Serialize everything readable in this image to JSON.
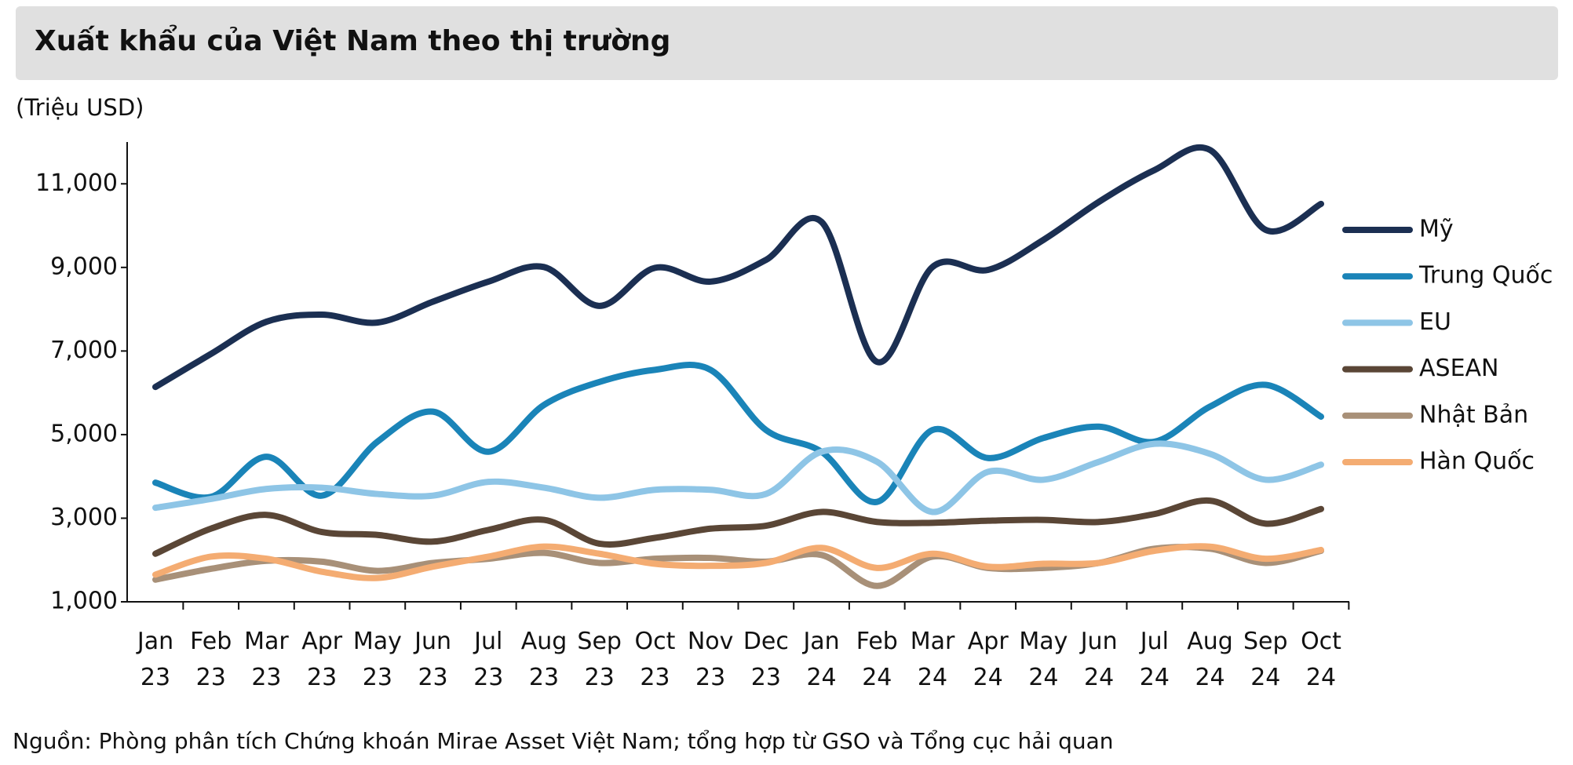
{
  "chart_data": {
    "type": "line",
    "title": "Xuất khẩu của Việt Nam theo thị trường",
    "y_label": "(Triệu USD)",
    "source": "Nguồn: Phòng phân tích Chứng khoán Mirae Asset Việt Nam; tổng hợp từ GSO và Tổng cục hải quan",
    "categories": [
      "Jan 23",
      "Feb 23",
      "Mar 23",
      "Apr 23",
      "May 23",
      "Jun 23",
      "Jul 23",
      "Aug 23",
      "Sep 23",
      "Oct 23",
      "Nov 23",
      "Dec 23",
      "Jan 24",
      "Feb 24",
      "Mar 24",
      "Apr 24",
      "May 24",
      "Jun 24",
      "Jul 24",
      "Aug 24",
      "Sep 24",
      "Oct 24"
    ],
    "ylim": [
      1000,
      12000
    ],
    "yticks": [
      {
        "value": 1000,
        "label": "1,000"
      },
      {
        "value": 3000,
        "label": "3,000"
      },
      {
        "value": 5000,
        "label": "5,000"
      },
      {
        "value": 7000,
        "label": "7,000"
      },
      {
        "value": 9000,
        "label": "9,000"
      },
      {
        "value": 11000,
        "label": "11,000"
      }
    ],
    "legend": "right",
    "series": [
      {
        "name": "Mỹ",
        "color": "#1b2f52",
        "values": [
          6140,
          6930,
          7700,
          7870,
          7680,
          8180,
          8660,
          9010,
          8080,
          8990,
          8660,
          9180,
          10090,
          6740,
          9010,
          8940,
          9660,
          10570,
          11330,
          11810,
          9900,
          10520
        ]
      },
      {
        "name": "Trung Quốc",
        "color": "#1a84b8",
        "values": [
          3850,
          3510,
          4470,
          3540,
          4830,
          5550,
          4590,
          5710,
          6260,
          6550,
          6550,
          5110,
          4590,
          3390,
          5110,
          4440,
          4920,
          5190,
          4830,
          5670,
          6190,
          5430
        ]
      },
      {
        "name": "EU",
        "color": "#8ec5e6",
        "values": [
          3250,
          3460,
          3700,
          3730,
          3580,
          3540,
          3870,
          3730,
          3490,
          3680,
          3680,
          3580,
          4590,
          4350,
          3150,
          4110,
          3920,
          4350,
          4780,
          4540,
          3920,
          4280
        ]
      },
      {
        "name": "ASEAN",
        "color": "#5a4636",
        "values": [
          2150,
          2750,
          3080,
          2670,
          2600,
          2440,
          2720,
          2960,
          2390,
          2530,
          2750,
          2820,
          3150,
          2910,
          2890,
          2940,
          2960,
          2910,
          3100,
          3420,
          2870,
          3220
        ]
      },
      {
        "name": "Nhật Bản",
        "color": "#a89078",
        "values": [
          1530,
          1790,
          1980,
          1960,
          1740,
          1930,
          2030,
          2170,
          1930,
          2030,
          2050,
          1960,
          2120,
          1380,
          2080,
          1810,
          1810,
          1930,
          2270,
          2270,
          1930,
          2220
        ]
      },
      {
        "name": "Hàn Quốc",
        "color": "#f4ac72",
        "values": [
          1650,
          2080,
          2030,
          1720,
          1570,
          1840,
          2080,
          2320,
          2150,
          1910,
          1860,
          1930,
          2290,
          1810,
          2150,
          1840,
          1910,
          1930,
          2220,
          2320,
          2030,
          2240
        ]
      }
    ]
  }
}
